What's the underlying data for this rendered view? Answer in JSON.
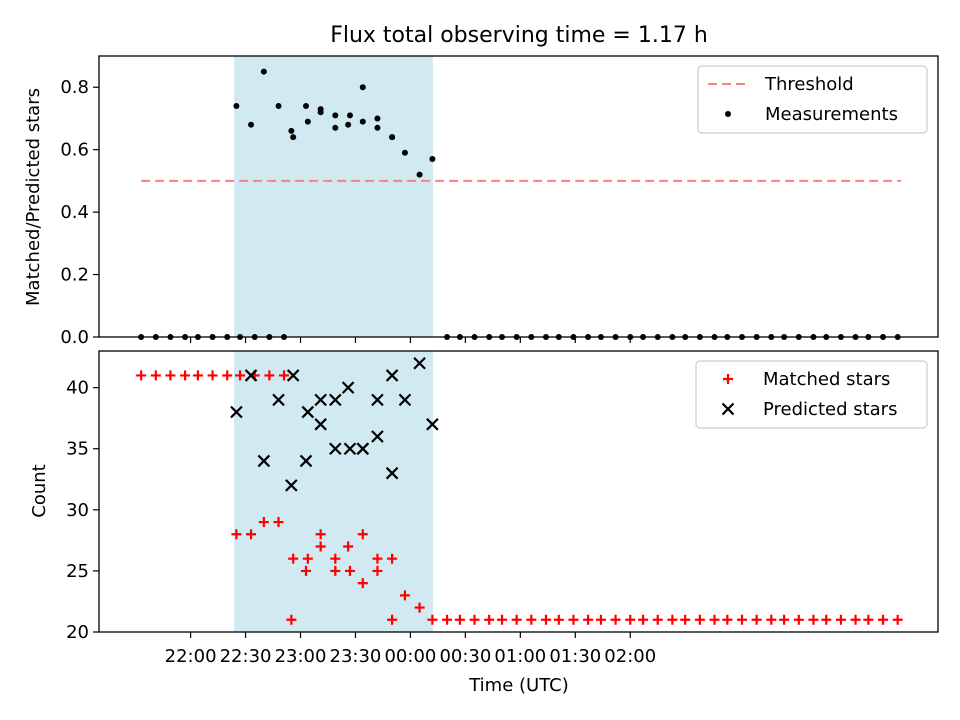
{
  "chart_data": [
    {
      "type": "scatter",
      "title": "Flux total observing time = 1.17 h",
      "xlabel": "",
      "ylabel": "Matched/Predicted stars",
      "ylim": [
        0,
        0.9
      ],
      "yticks": [
        "0.0",
        "0.2",
        "0.4",
        "0.6",
        "0.8"
      ],
      "ytick_values": [
        0,
        0.2,
        0.4,
        0.6,
        0.8
      ],
      "xlim_minutes": [
        -90,
        368
      ],
      "shaded_span_minutes": [
        -16,
        92
      ],
      "shaded_color": "#add8e6",
      "legend_position": "top-right",
      "threshold": {
        "name": "Threshold",
        "value": 0.5,
        "x_start": -67,
        "x_end": 348,
        "color": "#ff7f7f"
      },
      "measurements": {
        "name": "Measurements",
        "color": "#000000",
        "x_minutes": [
          -67,
          -59,
          -51,
          -43,
          -36,
          -28,
          -20,
          -13,
          -5,
          3,
          11,
          15,
          23,
          31,
          39,
          46,
          54,
          62,
          70,
          -15,
          -7,
          0,
          8,
          16,
          24,
          31,
          39,
          47,
          54,
          62,
          70,
          77,
          85,
          92,
          100,
          107,
          115,
          123,
          130,
          138,
          146,
          154,
          161,
          169,
          177,
          184,
          192,
          200,
          207,
          215,
          223,
          230,
          238,
          246,
          253,
          261,
          269,
          277,
          284,
          292,
          300,
          307,
          315,
          323,
          330,
          338,
          346
        ],
        "y": [
          0,
          0,
          0,
          0,
          0,
          0,
          0,
          0,
          0,
          0,
          0,
          0.66,
          0.74,
          0.73,
          0.67,
          0.68,
          0.8,
          0.67,
          0.64,
          0.74,
          0.68,
          0.85,
          0.74,
          0.64,
          0.69,
          0.72,
          0.71,
          0.71,
          0.69,
          0.7,
          0.64,
          0.59,
          0.52,
          0.57,
          0,
          0,
          0,
          0,
          0,
          0,
          0,
          0,
          0,
          0,
          0,
          0,
          0,
          0,
          0,
          0,
          0,
          0,
          0,
          0,
          0,
          0,
          0,
          0,
          0,
          0,
          0,
          0,
          0,
          0,
          0,
          0,
          0
        ]
      }
    },
    {
      "type": "scatter",
      "xlabel": "Time (UTC)",
      "ylabel": "Count",
      "ylim": [
        20,
        43
      ],
      "yticks": [
        "20",
        "25",
        "30",
        "35",
        "40"
      ],
      "ytick_values": [
        20,
        25,
        30,
        35,
        40
      ],
      "xticks": [
        "22:00",
        "22:30",
        "23:00",
        "23:30",
        "00:00",
        "00:30",
        "01:00",
        "01:30",
        "02:00"
      ],
      "xtick_minutes": [
        -40,
        -10,
        20,
        50,
        80,
        110,
        140,
        170,
        200
      ],
      "legend_position": "top-right",
      "matched": {
        "name": "Matched stars",
        "color": "#ff0000",
        "x_minutes": [
          -67,
          -59,
          -51,
          -43,
          -36,
          -28,
          -20,
          -13,
          -5,
          3,
          11,
          15,
          23,
          31,
          39,
          46,
          54,
          62,
          70,
          -15,
          -7,
          0,
          8,
          16,
          24,
          31,
          39,
          47,
          54,
          62,
          70,
          77,
          85,
          92,
          100,
          107,
          115,
          123,
          130,
          138,
          146,
          154,
          161,
          169,
          177,
          184,
          192,
          200,
          207,
          215,
          223,
          230,
          238,
          246,
          253,
          261,
          269,
          277,
          284,
          292,
          300,
          307,
          315,
          323,
          330,
          338,
          346
        ],
        "y": [
          41,
          41,
          41,
          41,
          41,
          41,
          41,
          41,
          41,
          41,
          41,
          21,
          25,
          27,
          26,
          27,
          28,
          26,
          21,
          28,
          28,
          29,
          29,
          26,
          26,
          28,
          25,
          25,
          24,
          25,
          26,
          23,
          22,
          21,
          21,
          21,
          21,
          21,
          21,
          21,
          21,
          21,
          21,
          21,
          21,
          21,
          21,
          21,
          21,
          21,
          21,
          21,
          21,
          21,
          21,
          21,
          21,
          21,
          21,
          21,
          21,
          21,
          21,
          21,
          21,
          21,
          21
        ]
      },
      "predicted": {
        "name": "Predicted stars",
        "color": "#000000",
        "x_minutes": [
          15,
          23,
          31,
          39,
          46,
          54,
          62,
          70,
          -15,
          -7,
          0,
          8,
          16,
          24,
          31,
          39,
          47,
          54,
          62,
          70,
          77,
          85,
          92
        ],
        "y": [
          32,
          34,
          37,
          39,
          40,
          35,
          39,
          33,
          38,
          41,
          34,
          39,
          41,
          38,
          39,
          35,
          35,
          35,
          36,
          41,
          39,
          42,
          37
        ]
      }
    }
  ]
}
